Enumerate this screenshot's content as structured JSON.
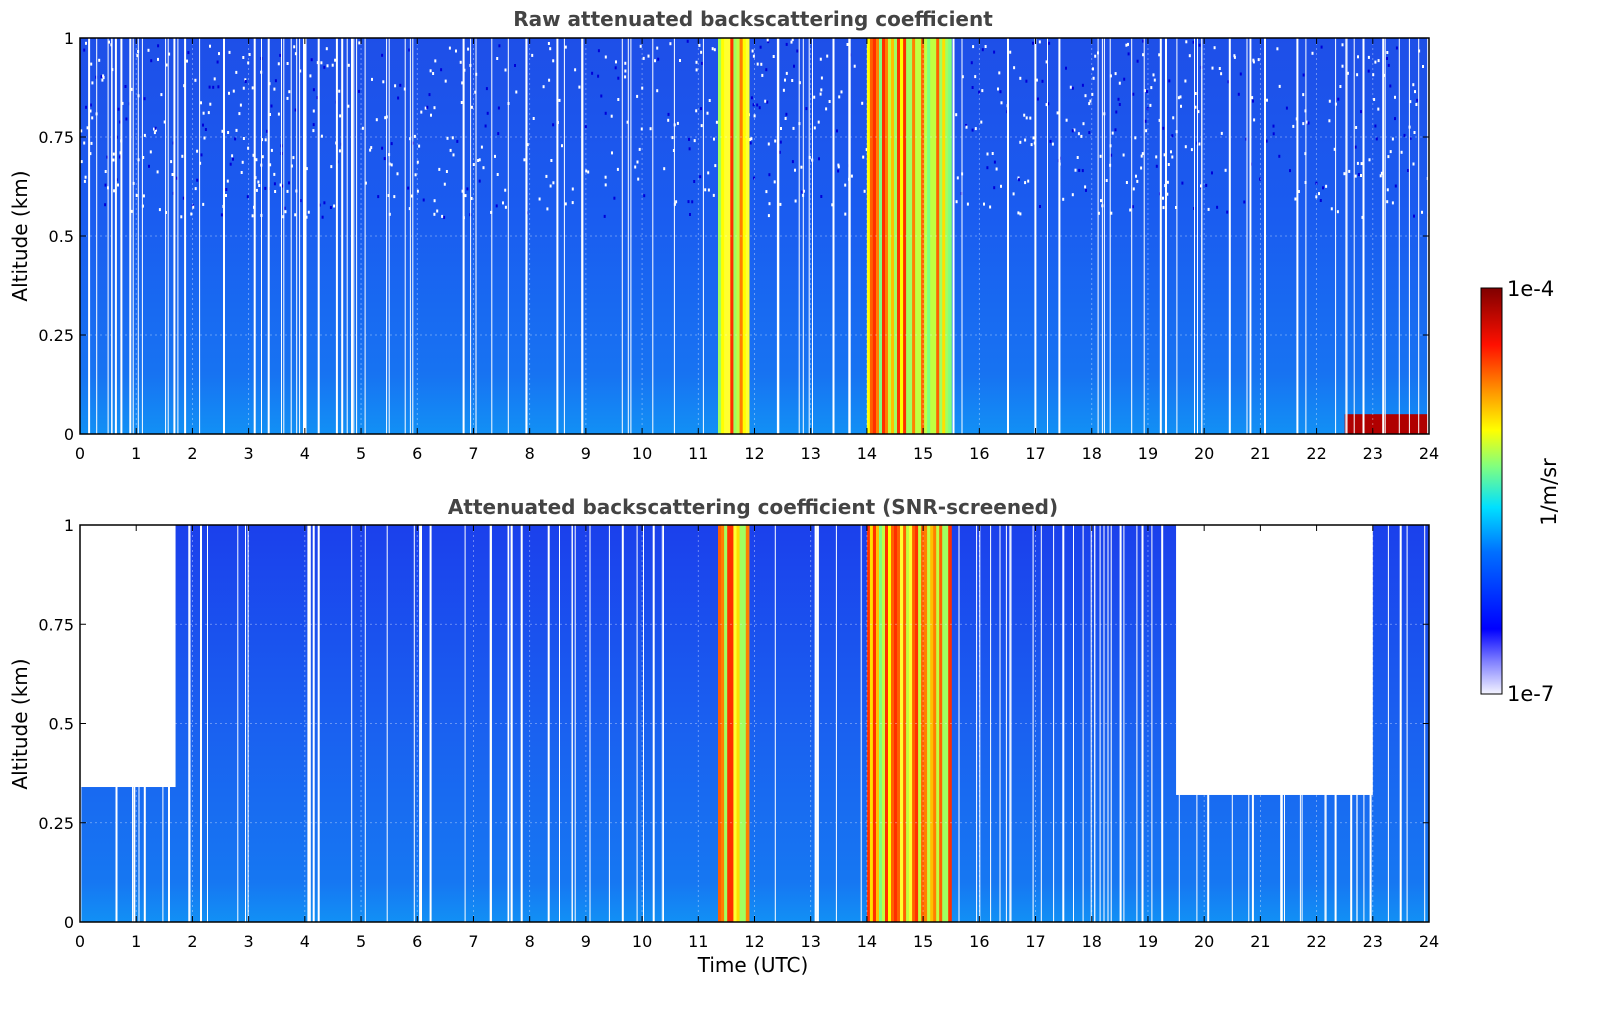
{
  "chart_data": [
    {
      "type": "heatmap",
      "title": "Raw attenuated backscattering coefficient",
      "xlabel": "",
      "ylabel": "Altitude (km)",
      "xlim": [
        0,
        24
      ],
      "ylim": [
        0,
        1
      ],
      "xticks": [
        "0",
        "1",
        "2",
        "3",
        "4",
        "5",
        "6",
        "7",
        "8",
        "9",
        "10",
        "11",
        "12",
        "13",
        "14",
        "15",
        "16",
        "17",
        "18",
        "19",
        "20",
        "21",
        "22",
        "23",
        "24"
      ],
      "yticks": [
        "0",
        "0.25",
        "0.5",
        "0.75",
        "1"
      ],
      "grid": true,
      "features": [
        {
          "x_start": 11.35,
          "x_end": 11.9,
          "level": "high"
        },
        {
          "x_start": 14.0,
          "x_end": 15.5,
          "level": "high"
        },
        {
          "x_start": 22.5,
          "x_end": 24.0,
          "y_max": 0.05,
          "level": "very high"
        }
      ]
    },
    {
      "type": "heatmap",
      "title": "Attenuated backscattering coefficient (SNR-screened)",
      "xlabel": "Time (UTC)",
      "ylabel": "Altitude (km)",
      "xlim": [
        0,
        24
      ],
      "ylim": [
        0,
        1
      ],
      "xticks": [
        "0",
        "1",
        "2",
        "3",
        "4",
        "5",
        "6",
        "7",
        "8",
        "9",
        "10",
        "11",
        "12",
        "13",
        "14",
        "15",
        "16",
        "17",
        "18",
        "19",
        "20",
        "21",
        "22",
        "23",
        "24"
      ],
      "yticks": [
        "0",
        "0.25",
        "0.5",
        "0.75",
        "1"
      ],
      "grid": true,
      "features": [
        {
          "x_start": 11.35,
          "x_end": 11.9,
          "level": "high"
        },
        {
          "x_start": 14.0,
          "x_end": 15.5,
          "level": "high"
        },
        {
          "x_start": 0.0,
          "x_end": 1.7,
          "y_max": 0.34,
          "note": "screened above"
        },
        {
          "x_start": 19.5,
          "x_end": 23.0,
          "y_max": 0.32,
          "note": "screened above"
        }
      ]
    }
  ],
  "colorbar": {
    "label": "1/m/sr",
    "max_label": "1e-4",
    "min_label": "1e-7",
    "colors": [
      "#f4f4ff",
      "#0000ff",
      "#0080ff",
      "#00e0ff",
      "#80ff80",
      "#ffff00",
      "#ff8000",
      "#ff0000",
      "#800000"
    ]
  }
}
